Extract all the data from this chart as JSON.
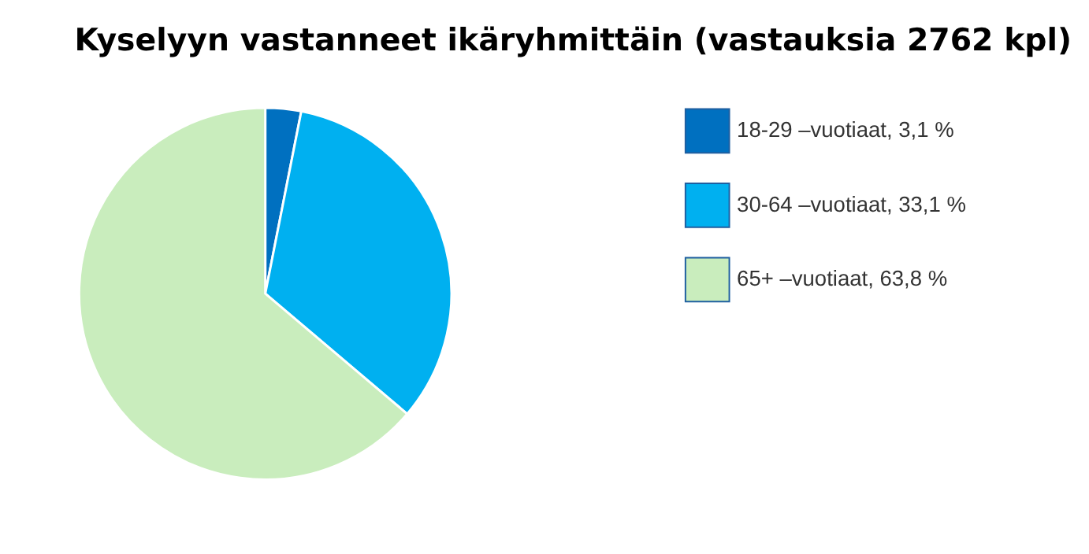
{
  "chart_data": {
    "type": "pie",
    "title": "Kyselyyn vastanneet ikäryhmittäin (vastauksia 2762 kpl)",
    "categories": [
      "18-29 –vuotiaat, 3,1 %",
      "30-64 –vuotiaat, 33,1 %",
      "65+ –vuotiaat, 63,8 %"
    ],
    "values": [
      3.1,
      33.1,
      63.8
    ],
    "colors": [
      "#0070c0",
      "#00b0f0",
      "#c9edbd"
    ],
    "legend": "right"
  }
}
